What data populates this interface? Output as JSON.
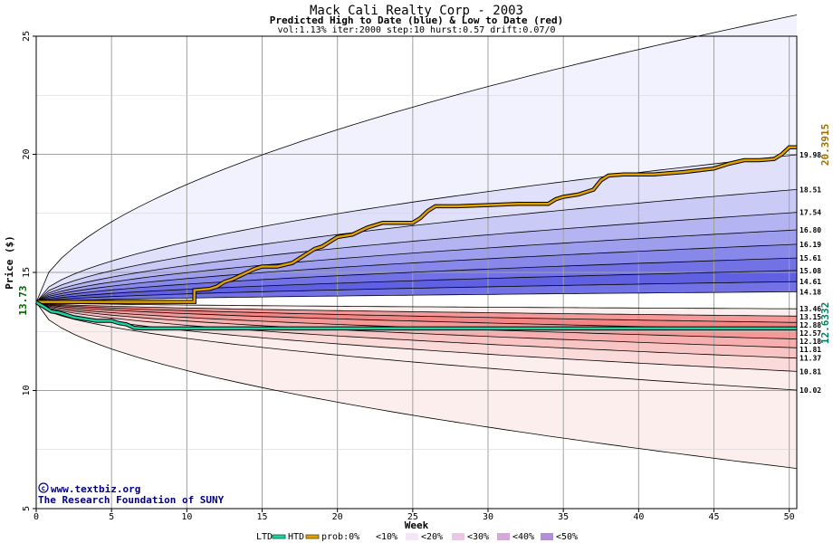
{
  "chart_data": {
    "type": "area",
    "title": "Mack Cali Realty Corp - 2003",
    "subtitle": "Predicted High to Date (blue) &  Low to Date (red)",
    "params": "vol:1.13% iter:2000 step:10 hurst:0.57 drift:0.07/0",
    "xlabel": "Week",
    "ylabel": "Price ($)",
    "xlim": [
      0,
      50.5
    ],
    "ylim": [
      5,
      25
    ],
    "x_ticks": [
      0,
      5,
      10,
      15,
      20,
      25,
      30,
      35,
      40,
      45,
      50
    ],
    "y_ticks": [
      5,
      10,
      15,
      20,
      25
    ],
    "grid": true,
    "start_price": 13.73,
    "start_label": "13.73",
    "bands_end_values": [
      25.9,
      19.98,
      18.51,
      17.54,
      16.8,
      16.19,
      15.61,
      15.08,
      14.61,
      14.18,
      13.46,
      13.15,
      12.88,
      12.57,
      12.18,
      11.81,
      11.37,
      10.81,
      10.02,
      6.7
    ],
    "right_labels": [
      "19.98",
      "18.51",
      "17.54",
      "16.80",
      "16.19",
      "15.61",
      "15.08",
      "14.61",
      "14.18",
      "13.46",
      "13.15",
      "12.88",
      "12.57",
      "12.18",
      "11.81",
      "11.37",
      "10.81",
      "10.02"
    ],
    "series": [
      {
        "name": "HTD",
        "color": "#e0a000",
        "end_label": "20.3915",
        "x": [
          0,
          10.5,
          10.5,
          11.5,
          12,
          12.5,
          13,
          13.5,
          14,
          14.5,
          15,
          16,
          17,
          17.5,
          18,
          18.5,
          19,
          19.5,
          20,
          21,
          21.5,
          22,
          22.5,
          23,
          24,
          25,
          25.5,
          26,
          26.5,
          28,
          30,
          32,
          34,
          34.5,
          35,
          36,
          37,
          37.5,
          38,
          39,
          40,
          41,
          42,
          43,
          45,
          46,
          47,
          48,
          49,
          49.5,
          50,
          50.5
        ],
        "y": [
          13.75,
          13.75,
          14.25,
          14.3,
          14.4,
          14.6,
          14.7,
          14.85,
          15.0,
          15.15,
          15.25,
          15.25,
          15.4,
          15.6,
          15.8,
          16.0,
          16.1,
          16.3,
          16.5,
          16.6,
          16.75,
          16.9,
          17.0,
          17.1,
          17.1,
          17.1,
          17.3,
          17.6,
          17.8,
          17.8,
          17.85,
          17.9,
          17.9,
          18.1,
          18.2,
          18.3,
          18.5,
          18.9,
          19.1,
          19.15,
          19.15,
          19.15,
          19.2,
          19.25,
          19.4,
          19.6,
          19.75,
          19.75,
          19.8,
          20.0,
          20.3,
          20.3
        ]
      },
      {
        "name": "LTD",
        "color": "#20d0a0",
        "end_label": "12.6332",
        "x": [
          0,
          0.5,
          1,
          1.5,
          2,
          2.5,
          3,
          3.5,
          4,
          5,
          5.5,
          6,
          6.5,
          7,
          8,
          10,
          15,
          20,
          25,
          30,
          35,
          40,
          45,
          50.5
        ],
        "y": [
          13.73,
          13.55,
          13.35,
          13.3,
          13.2,
          13.1,
          13.05,
          13.0,
          12.95,
          12.95,
          12.85,
          12.8,
          12.65,
          12.63,
          12.63,
          12.63,
          12.63,
          12.63,
          12.63,
          12.63,
          12.63,
          12.63,
          12.63,
          12.63
        ]
      }
    ],
    "legend": {
      "ltd": "LTD",
      "htd": "HTD",
      "prob": "prob:0%",
      "p10": "<10%",
      "p20": "<20%",
      "p30": "<30%",
      "p40": "<40%",
      "p50": "<50%"
    },
    "credit_line1": "www.textbiz.org",
    "credit_line2": "The Research Foundation of SUNY",
    "colors": {
      "band_blue": [
        "#f2f2fe",
        "#e0e0fb",
        "#cacaf7",
        "#b4b4f3",
        "#9e9eef",
        "#8888ea",
        "#7272e6",
        "#6060e2"
      ],
      "band_red": [
        "#fdeeee",
        "#fbdada",
        "#f9c4c4",
        "#f7aeae",
        "#f59898",
        "#f38585"
      ]
    }
  }
}
